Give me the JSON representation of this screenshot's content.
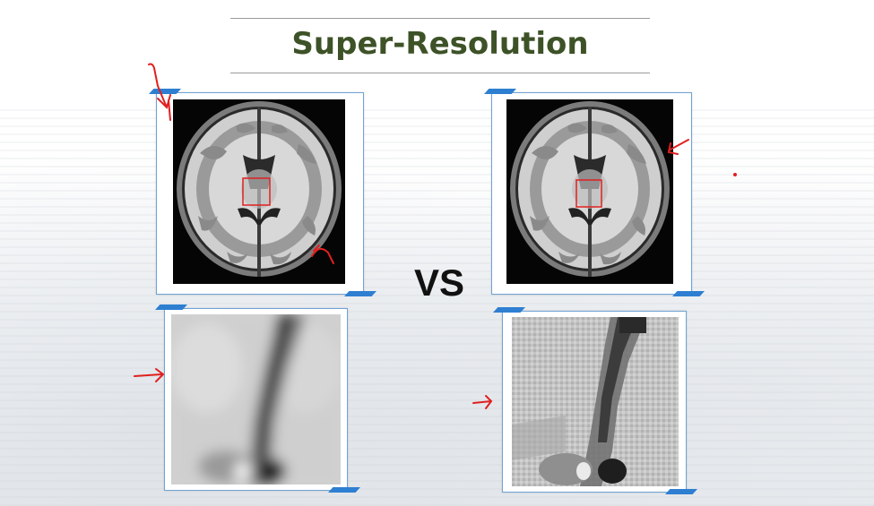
{
  "slide": {
    "title": "Super-Resolution",
    "comparison_label": "VS"
  },
  "colors": {
    "title": "#3d5227",
    "frame_border": "#6fa3d6",
    "frame_tab": "#2e7fd1",
    "annotation": "#e02020"
  },
  "panels": [
    {
      "id": "left-brain",
      "content": "brain-mri-axial-original"
    },
    {
      "id": "right-brain",
      "content": "brain-mri-axial-compared"
    },
    {
      "id": "left-zoom",
      "content": "zoomed-region-smooth"
    },
    {
      "id": "right-zoom",
      "content": "zoomed-region-pixelated"
    }
  ]
}
